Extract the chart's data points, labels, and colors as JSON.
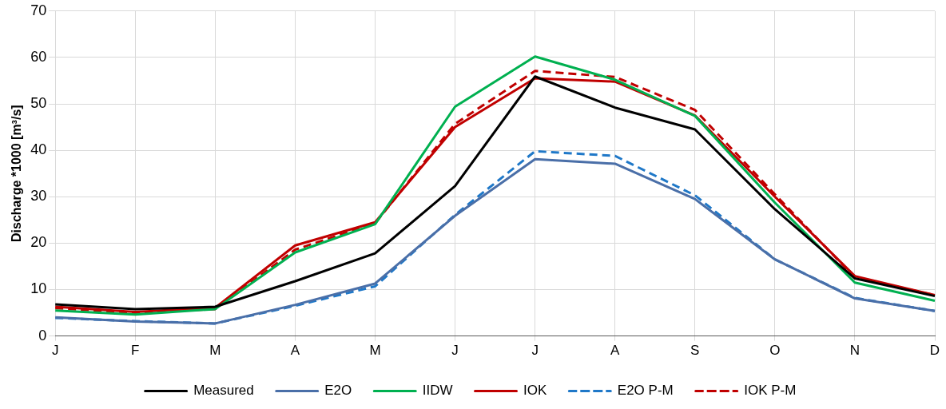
{
  "chart_data": {
    "type": "line",
    "ylabel": "Discharge *1000 [m³/s]",
    "categories": [
      "J",
      "F",
      "M",
      "A",
      "M",
      "J",
      "J",
      "A",
      "S",
      "O",
      "N",
      "D"
    ],
    "ylim": [
      0,
      70
    ],
    "yticks": [
      0,
      10,
      20,
      30,
      40,
      50,
      60,
      70
    ],
    "grid": true,
    "legend": "bottom",
    "marker": "none",
    "series": [
      {
        "name": "Measured",
        "color": "#000000",
        "line_style": "solid",
        "values": [
          6.8,
          5.8,
          6.3,
          11.8,
          17.8,
          32.3,
          55.9,
          49.2,
          44.5,
          27.3,
          12.4,
          8.6
        ]
      },
      {
        "name": "E2O",
        "color": "#4a6fa8",
        "line_style": "solid",
        "values": [
          4.0,
          3.1,
          2.7,
          6.7,
          11.3,
          25.9,
          38.1,
          37.1,
          29.5,
          16.5,
          8.1,
          5.4
        ]
      },
      {
        "name": "IIDW",
        "color": "#00b050",
        "line_style": "solid",
        "values": [
          5.5,
          4.6,
          5.8,
          18.0,
          24.1,
          49.4,
          60.2,
          55.2,
          47.4,
          28.7,
          11.5,
          7.6
        ]
      },
      {
        "name": "IOK",
        "color": "#c00000",
        "line_style": "solid",
        "values": [
          6.3,
          5.2,
          6.1,
          19.5,
          24.5,
          45.0,
          55.5,
          54.8,
          47.5,
          30.0,
          12.9,
          8.8
        ]
      },
      {
        "name": "E2O P-M",
        "color": "#1f78c8",
        "line_style": "dashed",
        "values": [
          3.9,
          3.2,
          2.7,
          6.5,
          10.7,
          26.1,
          39.8,
          38.8,
          30.3,
          16.5,
          8.2,
          5.4
        ]
      },
      {
        "name": "IOK P-M",
        "color": "#c00000",
        "line_style": "dashed",
        "values": [
          6.0,
          5.0,
          5.8,
          18.6,
          24.3,
          45.7,
          57.1,
          55.8,
          48.7,
          30.5,
          12.6,
          8.8
        ]
      }
    ]
  }
}
